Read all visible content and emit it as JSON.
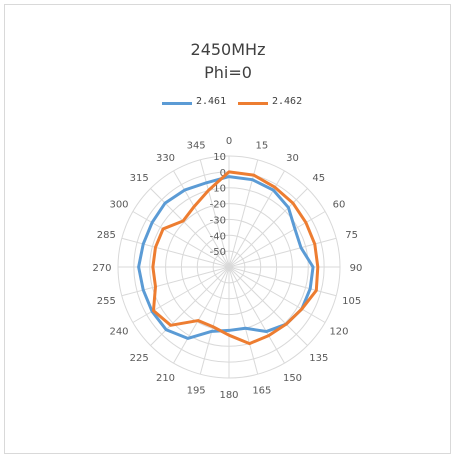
{
  "chart_data": {
    "type": "radar",
    "title": "2450MHz",
    "subtitle": "Phi=0",
    "angles": [
      "0",
      "15",
      "30",
      "45",
      "60",
      "75",
      "90",
      "105",
      "120",
      "135",
      "150",
      "165",
      "180",
      "195",
      "210",
      "225",
      "240",
      "255",
      "270",
      "285",
      "300",
      "315",
      "330",
      "345"
    ],
    "radial_ticks": [
      10,
      0,
      -10,
      -20,
      -30,
      -40,
      -50
    ],
    "radial_range": [
      -60,
      10
    ],
    "grid": true,
    "legend": "top",
    "series": [
      {
        "name": "2.461",
        "color": "#5b9bd5",
        "values": [
          -3,
          -3,
          -4,
          -7,
          -12,
          -13,
          -7,
          -7,
          -7,
          -9,
          -13,
          -20,
          -20,
          -18,
          -8,
          -4,
          -4,
          -4,
          -3,
          -4,
          -4,
          -3,
          -4,
          -5
        ]
      },
      {
        "name": "2.462",
        "color": "#ed7d31",
        "values": [
          0,
          0,
          -2,
          -3,
          -4,
          -4,
          -4,
          -3,
          -7,
          -9,
          -10,
          -10,
          -17,
          -21,
          -21,
          -8,
          -5,
          -12,
          -12,
          -12,
          -12,
          -19,
          -16,
          -10
        ]
      }
    ]
  }
}
